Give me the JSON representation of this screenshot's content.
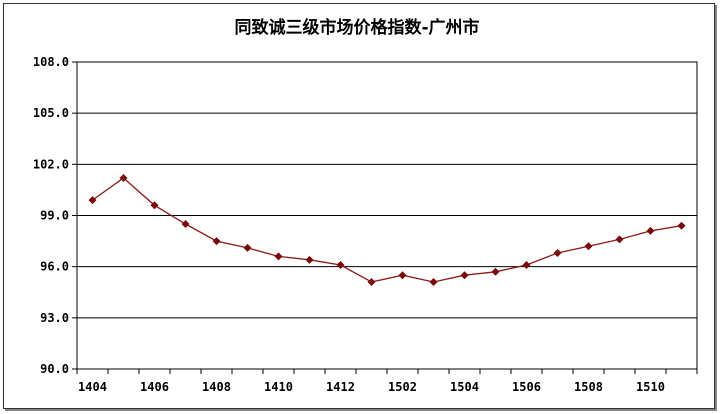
{
  "chart_data": {
    "type": "line",
    "title": "同致诚三级市场价格指数-广州市",
    "xlabel": "",
    "ylabel": "",
    "categories": [
      "1404",
      "1405",
      "1406",
      "1407",
      "1408",
      "1409",
      "1410",
      "1411",
      "1412",
      "1501",
      "1502",
      "1503",
      "1504",
      "1505",
      "1506",
      "1507",
      "1508",
      "1509",
      "1510",
      "1511"
    ],
    "x_tick_labels": [
      "1404",
      "1406",
      "1408",
      "1410",
      "1412",
      "1502",
      "1504",
      "1506",
      "1508",
      "1510"
    ],
    "series": [
      {
        "values": [
          99.9,
          101.2,
          99.6,
          98.5,
          97.5,
          97.1,
          96.6,
          96.4,
          96.1,
          95.1,
          95.5,
          95.1,
          95.5,
          95.7,
          96.1,
          96.8,
          97.2,
          97.6,
          98.1,
          98.4
        ]
      }
    ],
    "y_tick_labels": [
      "108.0",
      "105.0",
      "102.0",
      "99.0",
      "96.0",
      "93.0",
      "90.0"
    ],
    "ylim": [
      90,
      108
    ],
    "grid": true,
    "legend": "none",
    "line_color": "#8B1A1A",
    "marker_color": "#7A0A0A",
    "marker_shape": "diamond"
  }
}
